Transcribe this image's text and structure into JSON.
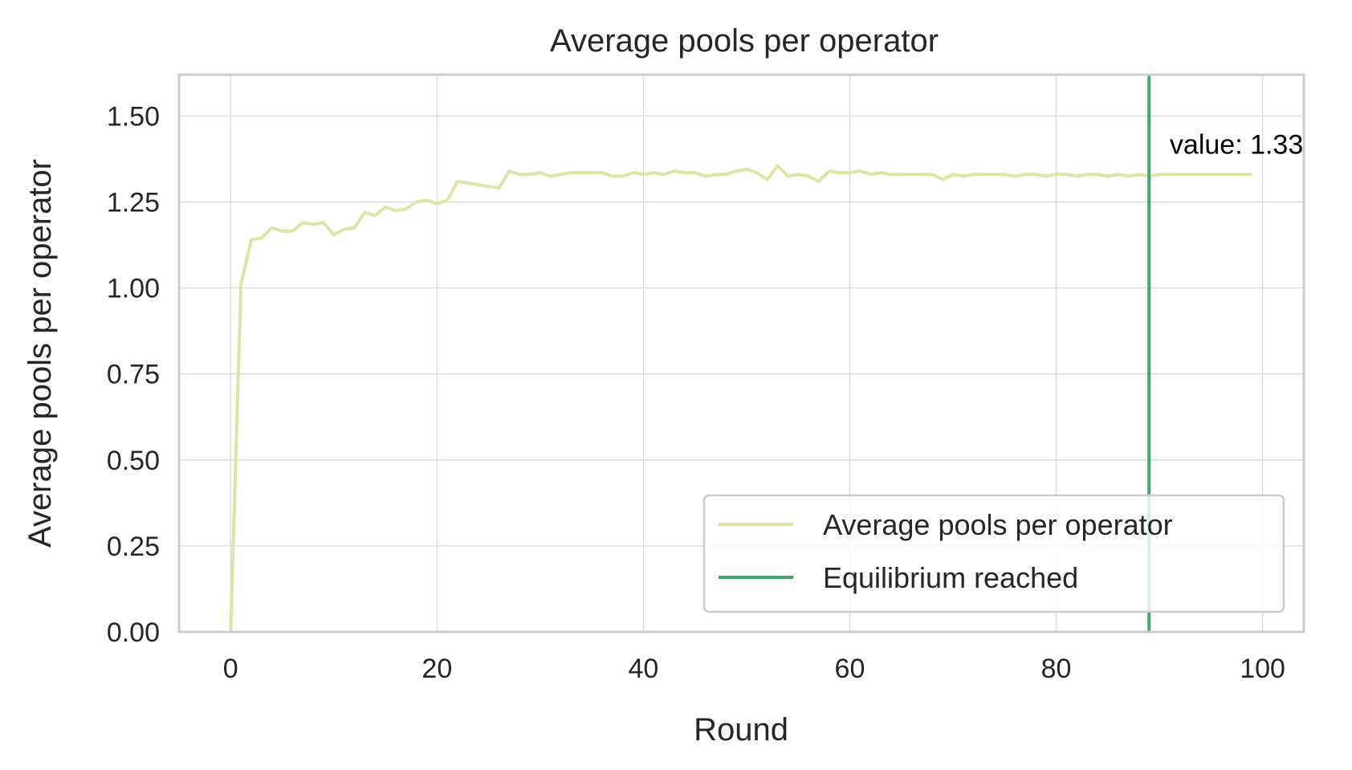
{
  "chart_data": {
    "type": "line",
    "title": "Average pools per operator",
    "xlabel": "Round",
    "ylabel": "Average pools per operator",
    "xlim": [
      -5,
      104
    ],
    "ylim": [
      0,
      1.62
    ],
    "xticks": [
      0,
      20,
      40,
      60,
      80,
      100
    ],
    "yticks": [
      0,
      0.25,
      0.5,
      0.75,
      1.0,
      1.25,
      1.5
    ],
    "xtick_labels": [
      "0",
      "20",
      "40",
      "60",
      "80",
      "100"
    ],
    "ytick_labels": [
      "0.00",
      "0.25",
      "0.50",
      "0.75",
      "1.00",
      "1.25",
      "1.50"
    ],
    "grid": true,
    "legend_position": "lower right",
    "series": [
      {
        "name": "Average pools per operator",
        "color": "#dfe3a6",
        "x": [
          0,
          1,
          2,
          3,
          4,
          5,
          6,
          7,
          8,
          9,
          10,
          11,
          12,
          13,
          14,
          15,
          16,
          17,
          18,
          19,
          20,
          21,
          22,
          23,
          24,
          25,
          26,
          27,
          28,
          29,
          30,
          31,
          32,
          33,
          34,
          35,
          36,
          37,
          38,
          39,
          40,
          41,
          42,
          43,
          44,
          45,
          46,
          47,
          48,
          49,
          50,
          51,
          52,
          53,
          54,
          55,
          56,
          57,
          58,
          59,
          60,
          61,
          62,
          63,
          64,
          65,
          66,
          67,
          68,
          69,
          70,
          71,
          72,
          73,
          74,
          75,
          76,
          77,
          78,
          79,
          80,
          81,
          82,
          83,
          84,
          85,
          86,
          87,
          88,
          89,
          90,
          91,
          92,
          93,
          94,
          95,
          96,
          97,
          98,
          99
        ],
        "y": [
          0.0,
          1.01,
          1.14,
          1.145,
          1.175,
          1.165,
          1.165,
          1.19,
          1.185,
          1.19,
          1.155,
          1.17,
          1.175,
          1.22,
          1.21,
          1.235,
          1.225,
          1.23,
          1.25,
          1.255,
          1.245,
          1.255,
          1.31,
          1.305,
          1.3,
          1.295,
          1.29,
          1.34,
          1.33,
          1.33,
          1.335,
          1.325,
          1.33,
          1.335,
          1.335,
          1.335,
          1.335,
          1.325,
          1.325,
          1.335,
          1.33,
          1.335,
          1.33,
          1.34,
          1.335,
          1.335,
          1.325,
          1.33,
          1.33,
          1.34,
          1.345,
          1.335,
          1.315,
          1.355,
          1.325,
          1.33,
          1.325,
          1.31,
          1.34,
          1.335,
          1.335,
          1.34,
          1.33,
          1.335,
          1.33,
          1.33,
          1.33,
          1.33,
          1.33,
          1.315,
          1.33,
          1.325,
          1.33,
          1.33,
          1.33,
          1.33,
          1.325,
          1.33,
          1.33,
          1.325,
          1.33,
          1.33,
          1.325,
          1.33,
          1.33,
          1.325,
          1.33,
          1.325,
          1.33,
          1.325,
          1.33,
          1.33,
          1.33,
          1.33,
          1.33,
          1.33,
          1.33,
          1.33,
          1.33,
          1.33
        ]
      },
      {
        "name": "Equilibrium reached",
        "color": "#3daa6b",
        "type": "vline",
        "x": 89
      }
    ],
    "annotations": [
      {
        "text": "value: 1.33",
        "x": 91,
        "y": 1.39
      }
    ]
  }
}
